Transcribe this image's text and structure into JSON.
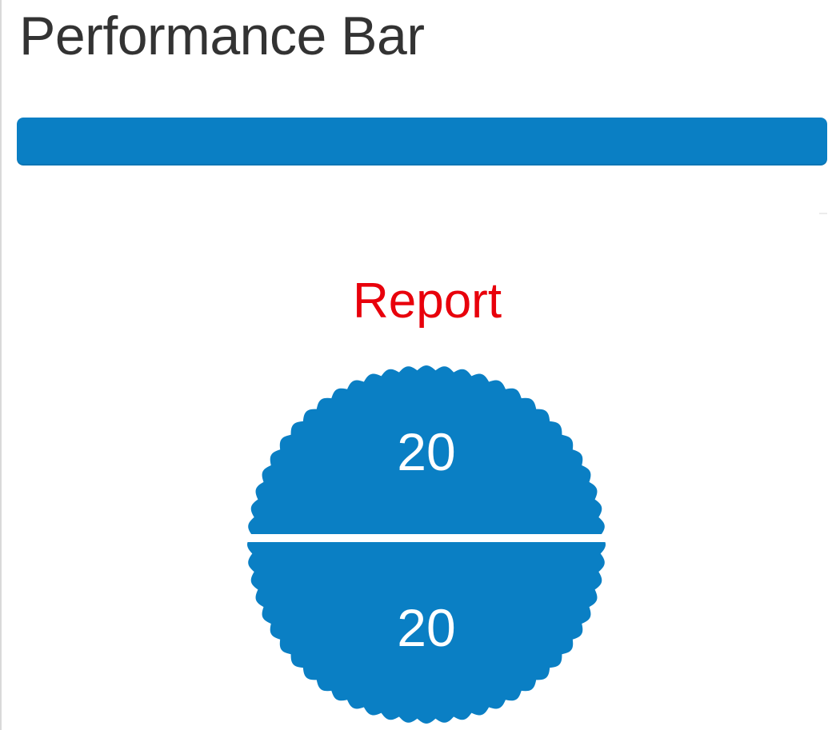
{
  "page": {
    "title": "Performance Bar"
  },
  "performance_bar": {
    "fill_percent": 100,
    "color": "#0a7fc4"
  },
  "report": {
    "label": "Report",
    "label_color": "#e8000b",
    "badge_color": "#0a7fc4",
    "top_value": "20",
    "bottom_value": "20"
  }
}
